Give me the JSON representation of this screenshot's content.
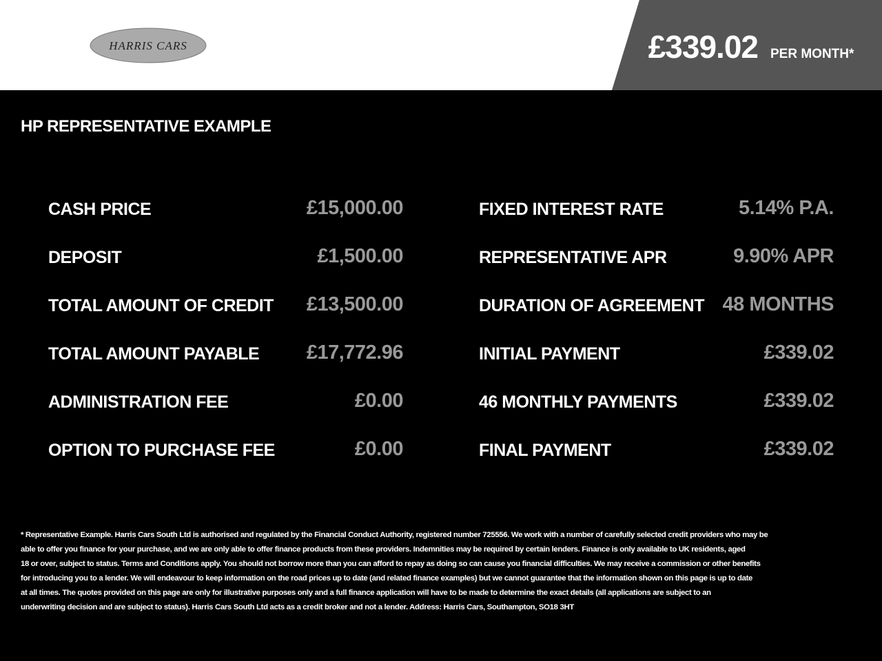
{
  "header": {
    "logo": "HARRIS CARS",
    "price": "£339.02",
    "price_suffix": "PER MONTH*"
  },
  "section_title": "HP REPRESENTATIVE EXAMPLE",
  "left_rows": [
    [
      "CASH PRICE",
      "£15,000.00"
    ],
    [
      "DEPOSIT",
      "£1,500.00"
    ],
    [
      "TOTAL AMOUNT OF CREDIT",
      "£13,500.00"
    ],
    [
      "TOTAL AMOUNT PAYABLE",
      "£17,772.96"
    ],
    [
      "ADMINISTRATION FEE",
      "£0.00"
    ],
    [
      "OPTION TO PURCHASE FEE",
      "£0.00"
    ]
  ],
  "right_rows": [
    [
      "FIXED INTEREST RATE",
      "5.14% P.A."
    ],
    [
      "REPRESENTATIVE APR",
      "9.90% APR"
    ],
    [
      "DURATION OF AGREEMENT",
      "48 MONTHS"
    ],
    [
      "INITIAL PAYMENT",
      "£339.02"
    ],
    [
      "46 MONTHLY PAYMENTS",
      "£339.02"
    ],
    [
      "FINAL PAYMENT",
      "£339.02"
    ]
  ],
  "disclaimer": [
    "* Representative Example. Harris Cars South Ltd is authorised and regulated by the Financial Conduct Authority, registered number 725556. We work with a number of carefully selected credit providers who may be",
    "able to offer you finance for your purchase, and we are only able to offer finance products from these providers. Indemnities may be required by certain lenders. Finance is only available to UK residents, aged",
    "18 or over, subject to status. Terms and Conditions apply. You should not borrow more than you can afford to repay as doing so can cause you financial difficulties. We may receive a commission or other benefits",
    "for introducing you to a lender. We will endeavour to keep information on the road prices up to date (and related finance examples) but we cannot guarantee that the information shown on this page is up to date",
    "at all times. The quotes provided on this page are only for illustrative purposes only and a full finance application will have to be made to determine the exact details (all applications are subject to an",
    "underwriting decision and are subject to status). Harris Cars South Ltd acts as a credit broker and not a lender. Address: Harris Cars, Southampton, SO18 3HT"
  ]
}
